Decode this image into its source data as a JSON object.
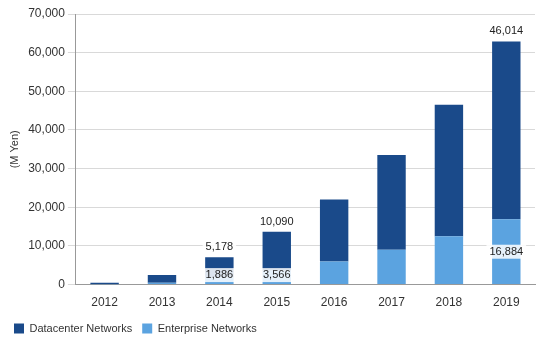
{
  "chart_data": {
    "type": "bar",
    "stacked": true,
    "y_label": "(M Yen)",
    "categories": [
      "2012",
      "2013",
      "2014",
      "2015",
      "2016",
      "2017",
      "2018",
      "2019"
    ],
    "series": [
      {
        "name": "Enterprise Networks",
        "color": "#5ba3e0",
        "values": [
          100,
          500,
          1886,
          3566,
          6000,
          9000,
          12500,
          16884
        ],
        "value_labels": [
          null,
          null,
          "1,886",
          "3,566",
          null,
          null,
          null,
          "16,884"
        ]
      },
      {
        "name": "Datacenter Networks",
        "color": "#1a4a8a",
        "values": [
          400,
          2000,
          5178,
          10090,
          16000,
          24500,
          34000,
          46014
        ],
        "value_labels": [
          null,
          null,
          "5,178",
          "10,090",
          null,
          null,
          null,
          "46,014"
        ]
      }
    ],
    "ylim": [
      0,
      70000
    ],
    "yticks": [
      0,
      {
        "value": 10000,
        "label": "10,000"
      },
      {
        "value": 20000,
        "label": "20,000"
      },
      {
        "value": 30000,
        "label": "30,000"
      },
      {
        "value": 40000,
        "label": "40,000"
      },
      {
        "value": 50000,
        "label": "50,000"
      },
      {
        "value": 60000,
        "label": "60,000"
      },
      {
        "value": 70000,
        "label": "70,000"
      }
    ],
    "grid": true,
    "legend": "bottom",
    "data_labels": true
  }
}
